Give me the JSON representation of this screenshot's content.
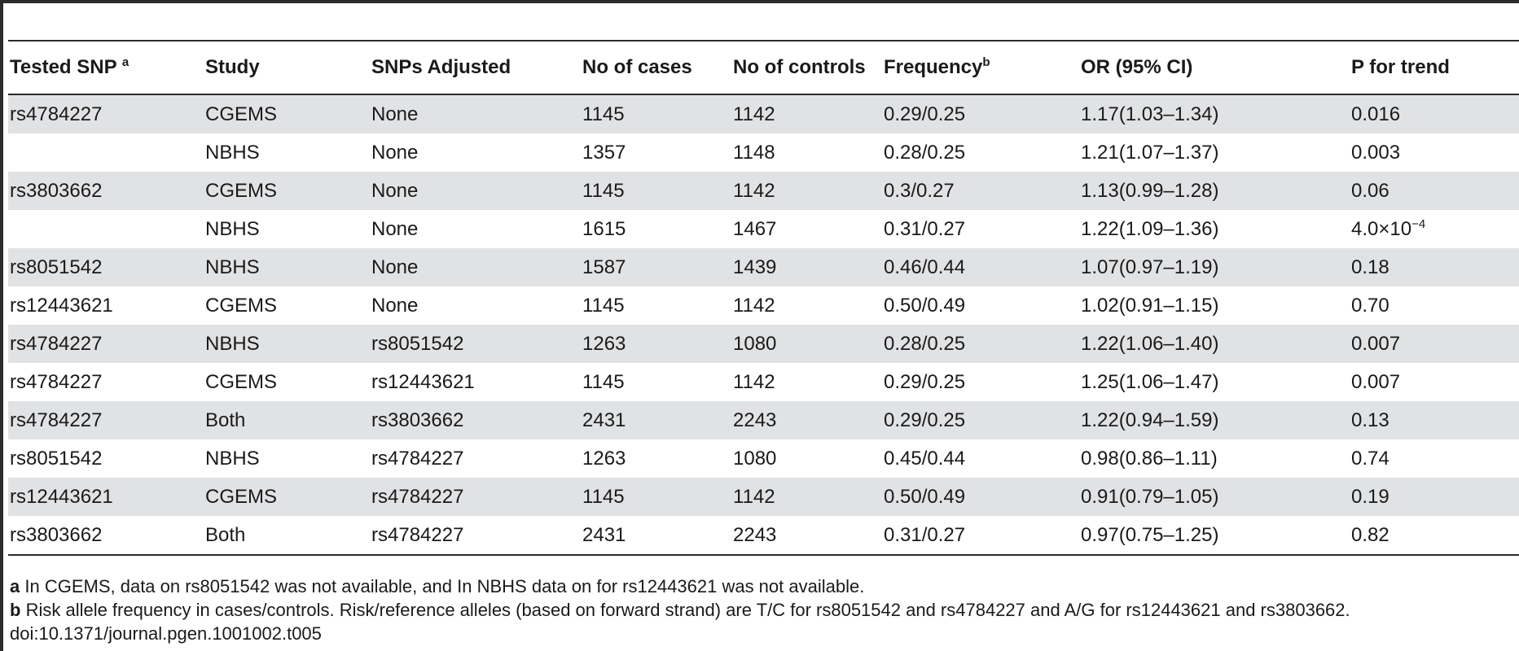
{
  "table": {
    "columns": [
      {
        "label": "Tested SNP ",
        "sup": "a"
      },
      {
        "label": "Study",
        "sup": ""
      },
      {
        "label": "SNPs Adjusted",
        "sup": ""
      },
      {
        "label": "No of cases",
        "sup": ""
      },
      {
        "label": "No of controls",
        "sup": ""
      },
      {
        "label": "Frequency",
        "sup": "b"
      },
      {
        "label": "OR (95% CI)",
        "sup": ""
      },
      {
        "label": "P for trend",
        "sup": ""
      }
    ],
    "rows": [
      {
        "snp": "rs4784227",
        "study": "CGEMS",
        "adjusted": "None",
        "cases": "1145",
        "controls": "1142",
        "freq": "0.29/0.25",
        "or": "1.17(1.03–1.34)",
        "p": "0.016",
        "p_exp": ""
      },
      {
        "snp": "",
        "study": "NBHS",
        "adjusted": "None",
        "cases": "1357",
        "controls": "1148",
        "freq": "0.28/0.25",
        "or": "1.21(1.07–1.37)",
        "p": "0.003",
        "p_exp": ""
      },
      {
        "snp": "rs3803662",
        "study": "CGEMS",
        "adjusted": "None",
        "cases": "1145",
        "controls": "1142",
        "freq": "0.3/0.27",
        "or": "1.13(0.99–1.28)",
        "p": "0.06",
        "p_exp": ""
      },
      {
        "snp": "",
        "study": "NBHS",
        "adjusted": "None",
        "cases": "1615",
        "controls": "1467",
        "freq": "0.31/0.27",
        "or": "1.22(1.09–1.36)",
        "p": "4.0×10",
        "p_exp": "−4"
      },
      {
        "snp": "rs8051542",
        "study": "NBHS",
        "adjusted": "None",
        "cases": "1587",
        "controls": "1439",
        "freq": "0.46/0.44",
        "or": "1.07(0.97–1.19)",
        "p": "0.18",
        "p_exp": ""
      },
      {
        "snp": "rs12443621",
        "study": "CGEMS",
        "adjusted": "None",
        "cases": "1145",
        "controls": "1142",
        "freq": "0.50/0.49",
        "or": "1.02(0.91–1.15)",
        "p": "0.70",
        "p_exp": ""
      },
      {
        "snp": "rs4784227",
        "study": "NBHS",
        "adjusted": "rs8051542",
        "cases": "1263",
        "controls": "1080",
        "freq": "0.28/0.25",
        "or": "1.22(1.06–1.40)",
        "p": "0.007",
        "p_exp": ""
      },
      {
        "snp": "rs4784227",
        "study": "CGEMS",
        "adjusted": "rs12443621",
        "cases": "1145",
        "controls": "1142",
        "freq": "0.29/0.25",
        "or": "1.25(1.06–1.47)",
        "p": "0.007",
        "p_exp": ""
      },
      {
        "snp": "rs4784227",
        "study": "Both",
        "adjusted": "rs3803662",
        "cases": "2431",
        "controls": "2243",
        "freq": "0.29/0.25",
        "or": "1.22(0.94–1.59)",
        "p": "0.13",
        "p_exp": ""
      },
      {
        "snp": "rs8051542",
        "study": "NBHS",
        "adjusted": "rs4784227",
        "cases": "1263",
        "controls": "1080",
        "freq": "0.45/0.44",
        "or": "0.98(0.86–1.11)",
        "p": "0.74",
        "p_exp": ""
      },
      {
        "snp": "rs12443621",
        "study": "CGEMS",
        "adjusted": "rs4784227",
        "cases": "1145",
        "controls": "1142",
        "freq": "0.50/0.49",
        "or": "0.91(0.79–1.05)",
        "p": "0.19",
        "p_exp": ""
      },
      {
        "snp": "rs3803662",
        "study": "Both",
        "adjusted": "rs4784227",
        "cases": "2431",
        "controls": "2243",
        "freq": "0.31/0.27",
        "or": "0.97(0.75–1.25)",
        "p": "0.82",
        "p_exp": ""
      }
    ]
  },
  "footnotes": [
    {
      "mark": "a",
      "text": " In CGEMS, data on rs8051542 was not available, and In NBHS data on for rs12443621 was not available."
    },
    {
      "mark": "b",
      "text": " Risk allele frequency in cases/controls. Risk/reference alleles (based on forward strand) are T/C for rs8051542 and rs4784227 and A/G for rs12443621 and rs3803662."
    }
  ],
  "doi": "doi:10.1371/journal.pgen.1001002.t005"
}
